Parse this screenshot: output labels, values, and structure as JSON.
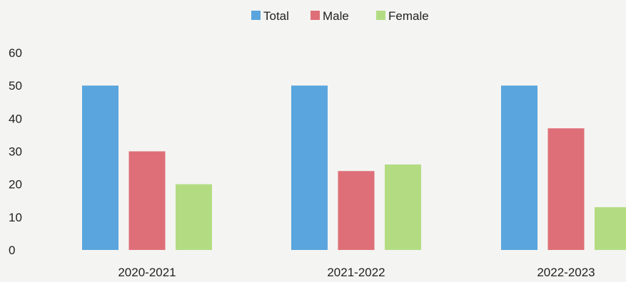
{
  "chart_data": {
    "type": "bar",
    "title": "",
    "xlabel": "",
    "ylabel": "",
    "categories": [
      "2020-2021",
      "2021-2022",
      "2022-2023"
    ],
    "series": [
      {
        "name": "Total",
        "color": "#5aa5dd",
        "values": [
          50,
          50,
          50
        ]
      },
      {
        "name": "Male",
        "color": "#de6f78",
        "values": [
          30,
          24,
          37
        ]
      },
      {
        "name": "Female",
        "color": "#b3dc82",
        "values": [
          20,
          26,
          13
        ]
      }
    ],
    "ylim": [
      0,
      60
    ],
    "yticks": [
      0,
      10,
      20,
      30,
      40,
      50,
      60
    ],
    "grid": false,
    "legend_position": "top-center"
  }
}
